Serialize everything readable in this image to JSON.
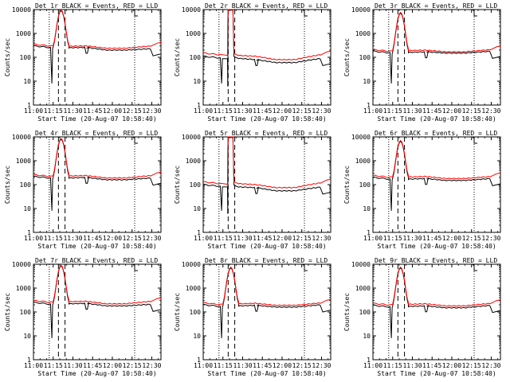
{
  "panel_title_suffix": "BLACK = Events, RED = LLD",
  "xlabel": "Start Time (20-Aug-07 10:58:40)",
  "ylabel": "Counts/sec",
  "colors": {
    "events": "#000000",
    "lld": "#ff0000",
    "axes": "#000000",
    "background": "#ffffff"
  },
  "chart_data": [
    {
      "type": "line",
      "detector": "Det 1r",
      "profile": "A",
      "scale": "log",
      "ylim": [
        1,
        10000
      ],
      "x_ticks": [
        "11:00",
        "11:15",
        "11:30",
        "11:45",
        "12:00",
        "12:15",
        "12:30"
      ],
      "y_ticks": [
        "1",
        "10",
        "100",
        "1000",
        "10000"
      ],
      "dashed_lines": [
        "11:19",
        "11:24"
      ],
      "dotted_lines": [
        "11:12",
        "12:17"
      ],
      "series": [
        {
          "name": "BLACK = Events",
          "peak": 9000,
          "baseline": [
            300,
            250,
            260,
            200,
            200,
            230
          ]
        },
        {
          "name": "RED = LLD",
          "peak": 9500,
          "baseline": [
            350,
            290,
            300,
            240,
            240,
            300
          ]
        }
      ]
    },
    {
      "type": "line",
      "detector": "Det 2r",
      "profile": "B",
      "scale": "log",
      "ylim": [
        1,
        10000
      ],
      "x_ticks": [
        "11:00",
        "11:15",
        "11:30",
        "11:45",
        "12:00",
        "12:15",
        "12:30"
      ],
      "y_ticks": [
        "1",
        "10",
        "100",
        "1000",
        "10000"
      ],
      "dashed_lines": [
        "11:19",
        "11:24"
      ],
      "dotted_lines": [
        "11:12",
        "12:17"
      ],
      "series": [
        {
          "name": "BLACK = Events",
          "peak": 9500,
          "baseline": [
            110,
            90,
            80,
            60,
            60,
            90
          ]
        },
        {
          "name": "RED = LLD",
          "peak": 10000,
          "baseline": [
            150,
            120,
            110,
            80,
            80,
            130
          ]
        }
      ]
    },
    {
      "type": "line",
      "detector": "Det 3r",
      "profile": "C",
      "scale": "log",
      "ylim": [
        1,
        10000
      ],
      "x_ticks": [
        "11:00",
        "11:15",
        "11:30",
        "11:45",
        "12:00",
        "12:15",
        "12:30"
      ],
      "y_ticks": [
        "1",
        "10",
        "100",
        "1000",
        "10000"
      ],
      "dashed_lines": [
        "11:19",
        "11:24"
      ],
      "dotted_lines": [
        "11:12",
        "12:17"
      ],
      "series": [
        {
          "name": "BLACK = Events",
          "peak": 7000,
          "baseline": [
            180,
            160,
            170,
            150,
            150,
            180
          ]
        },
        {
          "name": "RED = LLD",
          "peak": 7500,
          "baseline": [
            210,
            190,
            200,
            170,
            170,
            210
          ]
        }
      ]
    },
    {
      "type": "line",
      "detector": "Det 4r",
      "profile": "A",
      "scale": "log",
      "ylim": [
        1,
        10000
      ],
      "x_ticks": [
        "11:00",
        "11:15",
        "11:30",
        "11:45",
        "12:00",
        "12:15",
        "12:30"
      ],
      "y_ticks": [
        "1",
        "10",
        "100",
        "1000",
        "10000"
      ],
      "dashed_lines": [
        "11:19",
        "11:24"
      ],
      "dotted_lines": [
        "11:12",
        "12:17"
      ],
      "series": [
        {
          "name": "BLACK = Events",
          "peak": 8000,
          "baseline": [
            220,
            190,
            200,
            160,
            160,
            190
          ]
        },
        {
          "name": "RED = LLD",
          "peak": 8500,
          "baseline": [
            260,
            230,
            240,
            190,
            190,
            240
          ]
        }
      ]
    },
    {
      "type": "line",
      "detector": "Det 5r",
      "profile": "B",
      "scale": "log",
      "ylim": [
        1,
        10000
      ],
      "x_ticks": [
        "11:00",
        "11:15",
        "11:30",
        "11:45",
        "12:00",
        "12:15",
        "12:30"
      ],
      "y_ticks": [
        "1",
        "10",
        "100",
        "1000",
        "10000"
      ],
      "dashed_lines": [
        "11:19",
        "11:24"
      ],
      "dotted_lines": [
        "11:12",
        "12:17"
      ],
      "series": [
        {
          "name": "BLACK = Events",
          "peak": 9500,
          "baseline": [
            100,
            80,
            75,
            55,
            55,
            80
          ]
        },
        {
          "name": "RED = LLD",
          "peak": 10000,
          "baseline": [
            130,
            110,
            100,
            75,
            75,
            120
          ]
        }
      ]
    },
    {
      "type": "line",
      "detector": "Det 6r",
      "profile": "C",
      "scale": "log",
      "ylim": [
        1,
        10000
      ],
      "x_ticks": [
        "11:00",
        "11:15",
        "11:30",
        "11:45",
        "12:00",
        "12:15",
        "12:30"
      ],
      "y_ticks": [
        "1",
        "10",
        "100",
        "1000",
        "10000"
      ],
      "dashed_lines": [
        "11:19",
        "11:24"
      ],
      "dotted_lines": [
        "11:12",
        "12:17"
      ],
      "series": [
        {
          "name": "BLACK = Events",
          "peak": 6500,
          "baseline": [
            200,
            170,
            180,
            150,
            150,
            180
          ]
        },
        {
          "name": "RED = LLD",
          "peak": 7000,
          "baseline": [
            240,
            210,
            220,
            180,
            180,
            220
          ]
        }
      ]
    },
    {
      "type": "line",
      "detector": "Det 7r",
      "profile": "A",
      "scale": "log",
      "ylim": [
        1,
        10000
      ],
      "x_ticks": [
        "11:00",
        "11:15",
        "11:30",
        "11:45",
        "12:00",
        "12:15",
        "12:30"
      ],
      "y_ticks": [
        "1",
        "10",
        "100",
        "1000",
        "10000"
      ],
      "dashed_lines": [
        "11:19",
        "11:24"
      ],
      "dotted_lines": [
        "11:12",
        "12:17"
      ],
      "series": [
        {
          "name": "BLACK = Events",
          "peak": 8500,
          "baseline": [
            250,
            220,
            230,
            180,
            180,
            210
          ]
        },
        {
          "name": "RED = LLD",
          "peak": 9000,
          "baseline": [
            300,
            270,
            280,
            220,
            220,
            280
          ]
        }
      ]
    },
    {
      "type": "line",
      "detector": "Det 8r",
      "profile": "C",
      "scale": "log",
      "ylim": [
        1,
        10000
      ],
      "x_ticks": [
        "11:00",
        "11:15",
        "11:30",
        "11:45",
        "12:00",
        "12:15",
        "12:30"
      ],
      "y_ticks": [
        "1",
        "10",
        "100",
        "1000",
        "10000"
      ],
      "dashed_lines": [
        "11:19",
        "11:24"
      ],
      "dotted_lines": [
        "11:12",
        "12:17"
      ],
      "series": [
        {
          "name": "BLACK = Events",
          "peak": 7000,
          "baseline": [
            200,
            180,
            190,
            160,
            160,
            200
          ]
        },
        {
          "name": "RED = LLD",
          "peak": 7500,
          "baseline": [
            240,
            220,
            230,
            190,
            190,
            240
          ]
        }
      ]
    },
    {
      "type": "line",
      "detector": "Det 9r",
      "profile": "C",
      "scale": "log",
      "ylim": [
        1,
        10000
      ],
      "x_ticks": [
        "11:00",
        "11:15",
        "11:30",
        "11:45",
        "12:00",
        "12:15",
        "12:30"
      ],
      "y_ticks": [
        "1",
        "10",
        "100",
        "1000",
        "10000"
      ],
      "dashed_lines": [
        "11:19",
        "11:24"
      ],
      "dotted_lines": [
        "11:12",
        "12:17"
      ],
      "series": [
        {
          "name": "BLACK = Events",
          "peak": 7000,
          "baseline": [
            190,
            170,
            180,
            150,
            150,
            190
          ]
        },
        {
          "name": "RED = LLD",
          "peak": 7500,
          "baseline": [
            230,
            210,
            220,
            180,
            180,
            230
          ]
        }
      ]
    }
  ]
}
